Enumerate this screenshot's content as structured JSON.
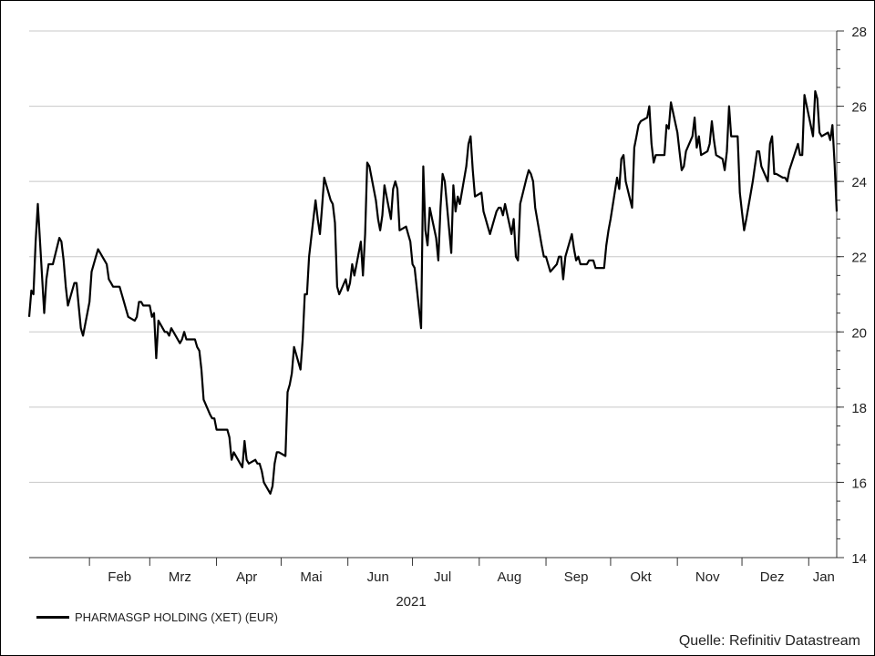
{
  "chart_data": {
    "type": "line",
    "title": "",
    "xlabel": "2021",
    "ylabel": "",
    "ylim": [
      14,
      28
    ],
    "y_ticks": [
      14,
      16,
      18,
      20,
      22,
      24,
      26,
      28
    ],
    "y_axis_side": "right",
    "grid": "horizontal",
    "legend_position": "bottom-left",
    "x_domain": [
      "2021-01-04",
      "2022-01-14"
    ],
    "month_ticks": [
      "2021-01-01",
      "2021-02-01",
      "2021-03-01",
      "2021-04-01",
      "2021-05-01",
      "2021-06-01",
      "2021-07-01",
      "2021-08-01",
      "2021-09-01",
      "2021-10-01",
      "2021-11-01",
      "2021-12-01",
      "2022-01-01"
    ],
    "month_labels": [
      {
        "label": "Feb",
        "date": "2021-02-15"
      },
      {
        "label": "Mrz",
        "date": "2021-03-15"
      },
      {
        "label": "Apr",
        "date": "2021-04-15"
      },
      {
        "label": "Mai",
        "date": "2021-05-15"
      },
      {
        "label": "Jun",
        "date": "2021-06-15"
      },
      {
        "label": "Jul",
        "date": "2021-07-15"
      },
      {
        "label": "Aug",
        "date": "2021-08-15"
      },
      {
        "label": "Sep",
        "date": "2021-09-15"
      },
      {
        "label": "Okt",
        "date": "2021-10-15"
      },
      {
        "label": "Nov",
        "date": "2021-11-15"
      },
      {
        "label": "Dez",
        "date": "2021-12-15"
      },
      {
        "label": "Jan",
        "date": "2022-01-08"
      }
    ],
    "series": [
      {
        "name": "PHARMASGP HOLDING (XET) (EUR)",
        "color": "#000000",
        "points": [
          [
            "2021-01-04",
            20.4
          ],
          [
            "2021-01-05",
            21.1
          ],
          [
            "2021-01-06",
            21.0
          ],
          [
            "2021-01-07",
            22.4
          ],
          [
            "2021-01-08",
            23.4
          ],
          [
            "2021-01-11",
            20.5
          ],
          [
            "2021-01-12",
            21.4
          ],
          [
            "2021-01-13",
            21.8
          ],
          [
            "2021-01-15",
            21.8
          ],
          [
            "2021-01-18",
            22.5
          ],
          [
            "2021-01-19",
            22.4
          ],
          [
            "2021-01-20",
            21.9
          ],
          [
            "2021-01-21",
            21.2
          ],
          [
            "2021-01-22",
            20.7
          ],
          [
            "2021-01-25",
            21.3
          ],
          [
            "2021-01-26",
            21.3
          ],
          [
            "2021-01-27",
            20.7
          ],
          [
            "2021-01-28",
            20.1
          ],
          [
            "2021-01-29",
            19.9
          ],
          [
            "2021-02-01",
            20.8
          ],
          [
            "2021-02-02",
            21.6
          ],
          [
            "2021-02-04",
            22.0
          ],
          [
            "2021-02-05",
            22.2
          ],
          [
            "2021-02-08",
            21.9
          ],
          [
            "2021-02-09",
            21.8
          ],
          [
            "2021-02-10",
            21.4
          ],
          [
            "2021-02-11",
            21.3
          ],
          [
            "2021-02-12",
            21.2
          ],
          [
            "2021-02-15",
            21.2
          ],
          [
            "2021-02-16",
            21.0
          ],
          [
            "2021-02-17",
            20.8
          ],
          [
            "2021-02-18",
            20.6
          ],
          [
            "2021-02-19",
            20.4
          ],
          [
            "2021-02-22",
            20.3
          ],
          [
            "2021-02-23",
            20.4
          ],
          [
            "2021-02-24",
            20.8
          ],
          [
            "2021-02-25",
            20.8
          ],
          [
            "2021-02-26",
            20.7
          ],
          [
            "2021-03-01",
            20.7
          ],
          [
            "2021-03-02",
            20.4
          ],
          [
            "2021-03-03",
            20.5
          ],
          [
            "2021-03-04",
            19.3
          ],
          [
            "2021-03-05",
            20.3
          ],
          [
            "2021-03-08",
            20.0
          ],
          [
            "2021-03-09",
            20.0
          ],
          [
            "2021-03-10",
            19.9
          ],
          [
            "2021-03-11",
            20.1
          ],
          [
            "2021-03-12",
            20.0
          ],
          [
            "2021-03-15",
            19.7
          ],
          [
            "2021-03-16",
            19.8
          ],
          [
            "2021-03-17",
            20.0
          ],
          [
            "2021-03-18",
            19.8
          ],
          [
            "2021-03-19",
            19.8
          ],
          [
            "2021-03-22",
            19.8
          ],
          [
            "2021-03-23",
            19.6
          ],
          [
            "2021-03-24",
            19.5
          ],
          [
            "2021-03-25",
            19.0
          ],
          [
            "2021-03-26",
            18.2
          ],
          [
            "2021-03-29",
            17.8
          ],
          [
            "2021-03-30",
            17.7
          ],
          [
            "2021-03-31",
            17.7
          ],
          [
            "2021-04-01",
            17.4
          ],
          [
            "2021-04-06",
            17.4
          ],
          [
            "2021-04-07",
            17.2
          ],
          [
            "2021-04-08",
            16.6
          ],
          [
            "2021-04-09",
            16.8
          ],
          [
            "2021-04-12",
            16.5
          ],
          [
            "2021-04-13",
            16.4
          ],
          [
            "2021-04-14",
            17.1
          ],
          [
            "2021-04-15",
            16.6
          ],
          [
            "2021-04-16",
            16.5
          ],
          [
            "2021-04-19",
            16.6
          ],
          [
            "2021-04-20",
            16.5
          ],
          [
            "2021-04-21",
            16.5
          ],
          [
            "2021-04-22",
            16.3
          ],
          [
            "2021-04-23",
            16.0
          ],
          [
            "2021-04-26",
            15.7
          ],
          [
            "2021-04-27",
            15.9
          ],
          [
            "2021-04-28",
            16.5
          ],
          [
            "2021-04-29",
            16.8
          ],
          [
            "2021-04-30",
            16.8
          ],
          [
            "2021-05-03",
            16.7
          ],
          [
            "2021-05-04",
            18.4
          ],
          [
            "2021-05-05",
            18.6
          ],
          [
            "2021-05-06",
            18.9
          ],
          [
            "2021-05-07",
            19.6
          ],
          [
            "2021-05-10",
            19.0
          ],
          [
            "2021-05-11",
            19.8
          ],
          [
            "2021-05-12",
            21.0
          ],
          [
            "2021-05-13",
            21.0
          ],
          [
            "2021-05-14",
            22.0
          ],
          [
            "2021-05-17",
            23.5
          ],
          [
            "2021-05-18",
            23.0
          ],
          [
            "2021-05-19",
            22.6
          ],
          [
            "2021-05-20",
            23.3
          ],
          [
            "2021-05-21",
            24.1
          ],
          [
            "2021-05-24",
            23.5
          ],
          [
            "2021-05-25",
            23.4
          ],
          [
            "2021-05-26",
            22.9
          ],
          [
            "2021-05-27",
            21.2
          ],
          [
            "2021-05-28",
            21.0
          ],
          [
            "2021-05-31",
            21.4
          ],
          [
            "2021-06-01",
            21.1
          ],
          [
            "2021-06-02",
            21.3
          ],
          [
            "2021-06-03",
            21.8
          ],
          [
            "2021-06-04",
            21.5
          ],
          [
            "2021-06-07",
            22.4
          ],
          [
            "2021-06-08",
            21.5
          ],
          [
            "2021-06-09",
            22.6
          ],
          [
            "2021-06-10",
            24.5
          ],
          [
            "2021-06-11",
            24.4
          ],
          [
            "2021-06-14",
            23.5
          ],
          [
            "2021-06-15",
            23.0
          ],
          [
            "2021-06-16",
            22.7
          ],
          [
            "2021-06-17",
            23.1
          ],
          [
            "2021-06-18",
            23.9
          ],
          [
            "2021-06-21",
            23.0
          ],
          [
            "2021-06-22",
            23.8
          ],
          [
            "2021-06-23",
            24.0
          ],
          [
            "2021-06-24",
            23.8
          ],
          [
            "2021-06-25",
            22.7
          ],
          [
            "2021-06-28",
            22.8
          ],
          [
            "2021-06-29",
            22.6
          ],
          [
            "2021-06-30",
            22.4
          ],
          [
            "2021-07-01",
            21.8
          ],
          [
            "2021-07-02",
            21.7
          ],
          [
            "2021-07-05",
            20.1
          ],
          [
            "2021-07-06",
            24.4
          ],
          [
            "2021-07-07",
            22.7
          ],
          [
            "2021-07-08",
            22.3
          ],
          [
            "2021-07-09",
            23.3
          ],
          [
            "2021-07-12",
            22.5
          ],
          [
            "2021-07-13",
            21.9
          ],
          [
            "2021-07-14",
            23.3
          ],
          [
            "2021-07-15",
            24.2
          ],
          [
            "2021-07-16",
            24.0
          ],
          [
            "2021-07-19",
            22.1
          ],
          [
            "2021-07-20",
            23.9
          ],
          [
            "2021-07-21",
            23.2
          ],
          [
            "2021-07-22",
            23.6
          ],
          [
            "2021-07-23",
            23.4
          ],
          [
            "2021-07-26",
            24.4
          ],
          [
            "2021-07-27",
            25.0
          ],
          [
            "2021-07-28",
            25.2
          ],
          [
            "2021-07-29",
            24.3
          ],
          [
            "2021-07-30",
            23.6
          ],
          [
            "2021-08-02",
            23.7
          ],
          [
            "2021-08-03",
            23.2
          ],
          [
            "2021-08-04",
            23.0
          ],
          [
            "2021-08-05",
            22.8
          ],
          [
            "2021-08-06",
            22.6
          ],
          [
            "2021-08-09",
            23.2
          ],
          [
            "2021-08-10",
            23.3
          ],
          [
            "2021-08-11",
            23.3
          ],
          [
            "2021-08-12",
            23.1
          ],
          [
            "2021-08-13",
            23.4
          ],
          [
            "2021-08-16",
            22.6
          ],
          [
            "2021-08-17",
            23.0
          ],
          [
            "2021-08-18",
            22.0
          ],
          [
            "2021-08-19",
            21.9
          ],
          [
            "2021-08-20",
            23.4
          ],
          [
            "2021-08-23",
            24.1
          ],
          [
            "2021-08-24",
            24.3
          ],
          [
            "2021-08-25",
            24.2
          ],
          [
            "2021-08-26",
            24.0
          ],
          [
            "2021-08-27",
            23.3
          ],
          [
            "2021-08-30",
            22.3
          ],
          [
            "2021-08-31",
            22.0
          ],
          [
            "2021-09-01",
            22.0
          ],
          [
            "2021-09-02",
            21.8
          ],
          [
            "2021-09-03",
            21.6
          ],
          [
            "2021-09-06",
            21.8
          ],
          [
            "2021-09-07",
            22.0
          ],
          [
            "2021-09-08",
            22.0
          ],
          [
            "2021-09-09",
            21.4
          ],
          [
            "2021-09-10",
            22.0
          ],
          [
            "2021-09-13",
            22.6
          ],
          [
            "2021-09-14",
            22.2
          ],
          [
            "2021-09-15",
            21.9
          ],
          [
            "2021-09-16",
            22.0
          ],
          [
            "2021-09-17",
            21.8
          ],
          [
            "2021-09-20",
            21.8
          ],
          [
            "2021-09-21",
            21.9
          ],
          [
            "2021-09-22",
            21.9
          ],
          [
            "2021-09-23",
            21.9
          ],
          [
            "2021-09-24",
            21.7
          ],
          [
            "2021-09-27",
            21.7
          ],
          [
            "2021-09-28",
            21.7
          ],
          [
            "2021-09-29",
            22.3
          ],
          [
            "2021-09-30",
            22.7
          ],
          [
            "2021-10-01",
            23.0
          ],
          [
            "2021-10-04",
            24.1
          ],
          [
            "2021-10-05",
            23.8
          ],
          [
            "2021-10-06",
            24.6
          ],
          [
            "2021-10-07",
            24.7
          ],
          [
            "2021-10-08",
            24.0
          ],
          [
            "2021-10-11",
            23.3
          ],
          [
            "2021-10-12",
            24.9
          ],
          [
            "2021-10-13",
            25.2
          ],
          [
            "2021-10-14",
            25.5
          ],
          [
            "2021-10-15",
            25.6
          ],
          [
            "2021-10-18",
            25.7
          ],
          [
            "2021-10-19",
            26.0
          ],
          [
            "2021-10-20",
            25.0
          ],
          [
            "2021-10-21",
            24.5
          ],
          [
            "2021-10-22",
            24.7
          ],
          [
            "2021-10-25",
            24.7
          ],
          [
            "2021-10-26",
            24.7
          ],
          [
            "2021-10-27",
            25.5
          ],
          [
            "2021-10-28",
            25.4
          ],
          [
            "2021-10-29",
            26.1
          ],
          [
            "2021-11-01",
            25.3
          ],
          [
            "2021-11-02",
            24.8
          ],
          [
            "2021-11-03",
            24.3
          ],
          [
            "2021-11-04",
            24.4
          ],
          [
            "2021-11-05",
            24.8
          ],
          [
            "2021-11-08",
            25.2
          ],
          [
            "2021-11-09",
            25.7
          ],
          [
            "2021-11-10",
            24.9
          ],
          [
            "2021-11-11",
            25.2
          ],
          [
            "2021-11-12",
            24.7
          ],
          [
            "2021-11-15",
            24.8
          ],
          [
            "2021-11-16",
            25.0
          ],
          [
            "2021-11-17",
            25.6
          ],
          [
            "2021-11-18",
            25.1
          ],
          [
            "2021-11-19",
            24.7
          ],
          [
            "2021-11-22",
            24.6
          ],
          [
            "2021-11-23",
            24.3
          ],
          [
            "2021-11-24",
            24.8
          ],
          [
            "2021-11-25",
            26.0
          ],
          [
            "2021-11-26",
            25.2
          ],
          [
            "2021-11-29",
            25.2
          ],
          [
            "2021-11-30",
            23.7
          ],
          [
            "2021-12-01",
            23.2
          ],
          [
            "2021-12-02",
            22.7
          ],
          [
            "2021-12-03",
            23.0
          ],
          [
            "2021-12-06",
            24.0
          ],
          [
            "2021-12-07",
            24.4
          ],
          [
            "2021-12-08",
            24.8
          ],
          [
            "2021-12-09",
            24.8
          ],
          [
            "2021-12-10",
            24.4
          ],
          [
            "2021-12-13",
            24.0
          ],
          [
            "2021-12-14",
            25.0
          ],
          [
            "2021-12-15",
            25.2
          ],
          [
            "2021-12-16",
            24.2
          ],
          [
            "2021-12-17",
            24.2
          ],
          [
            "2021-12-20",
            24.1
          ],
          [
            "2021-12-21",
            24.1
          ],
          [
            "2021-12-22",
            24.0
          ],
          [
            "2021-12-23",
            24.3
          ],
          [
            "2021-12-27",
            25.0
          ],
          [
            "2021-12-28",
            24.7
          ],
          [
            "2021-12-29",
            24.7
          ],
          [
            "2021-12-30",
            26.3
          ],
          [
            "2022-01-03",
            25.2
          ],
          [
            "2022-01-04",
            26.4
          ],
          [
            "2022-01-05",
            26.2
          ],
          [
            "2022-01-06",
            25.3
          ],
          [
            "2022-01-07",
            25.2
          ],
          [
            "2022-01-10",
            25.3
          ],
          [
            "2022-01-11",
            25.1
          ],
          [
            "2022-01-12",
            25.5
          ],
          [
            "2022-01-13",
            24.5
          ],
          [
            "2022-01-14",
            23.2
          ]
        ]
      }
    ]
  },
  "legend": {
    "label": "PHARMASGP HOLDING (XET) (EUR)"
  },
  "source": "Quelle: Refinitiv Datastream",
  "year_label": "2021"
}
